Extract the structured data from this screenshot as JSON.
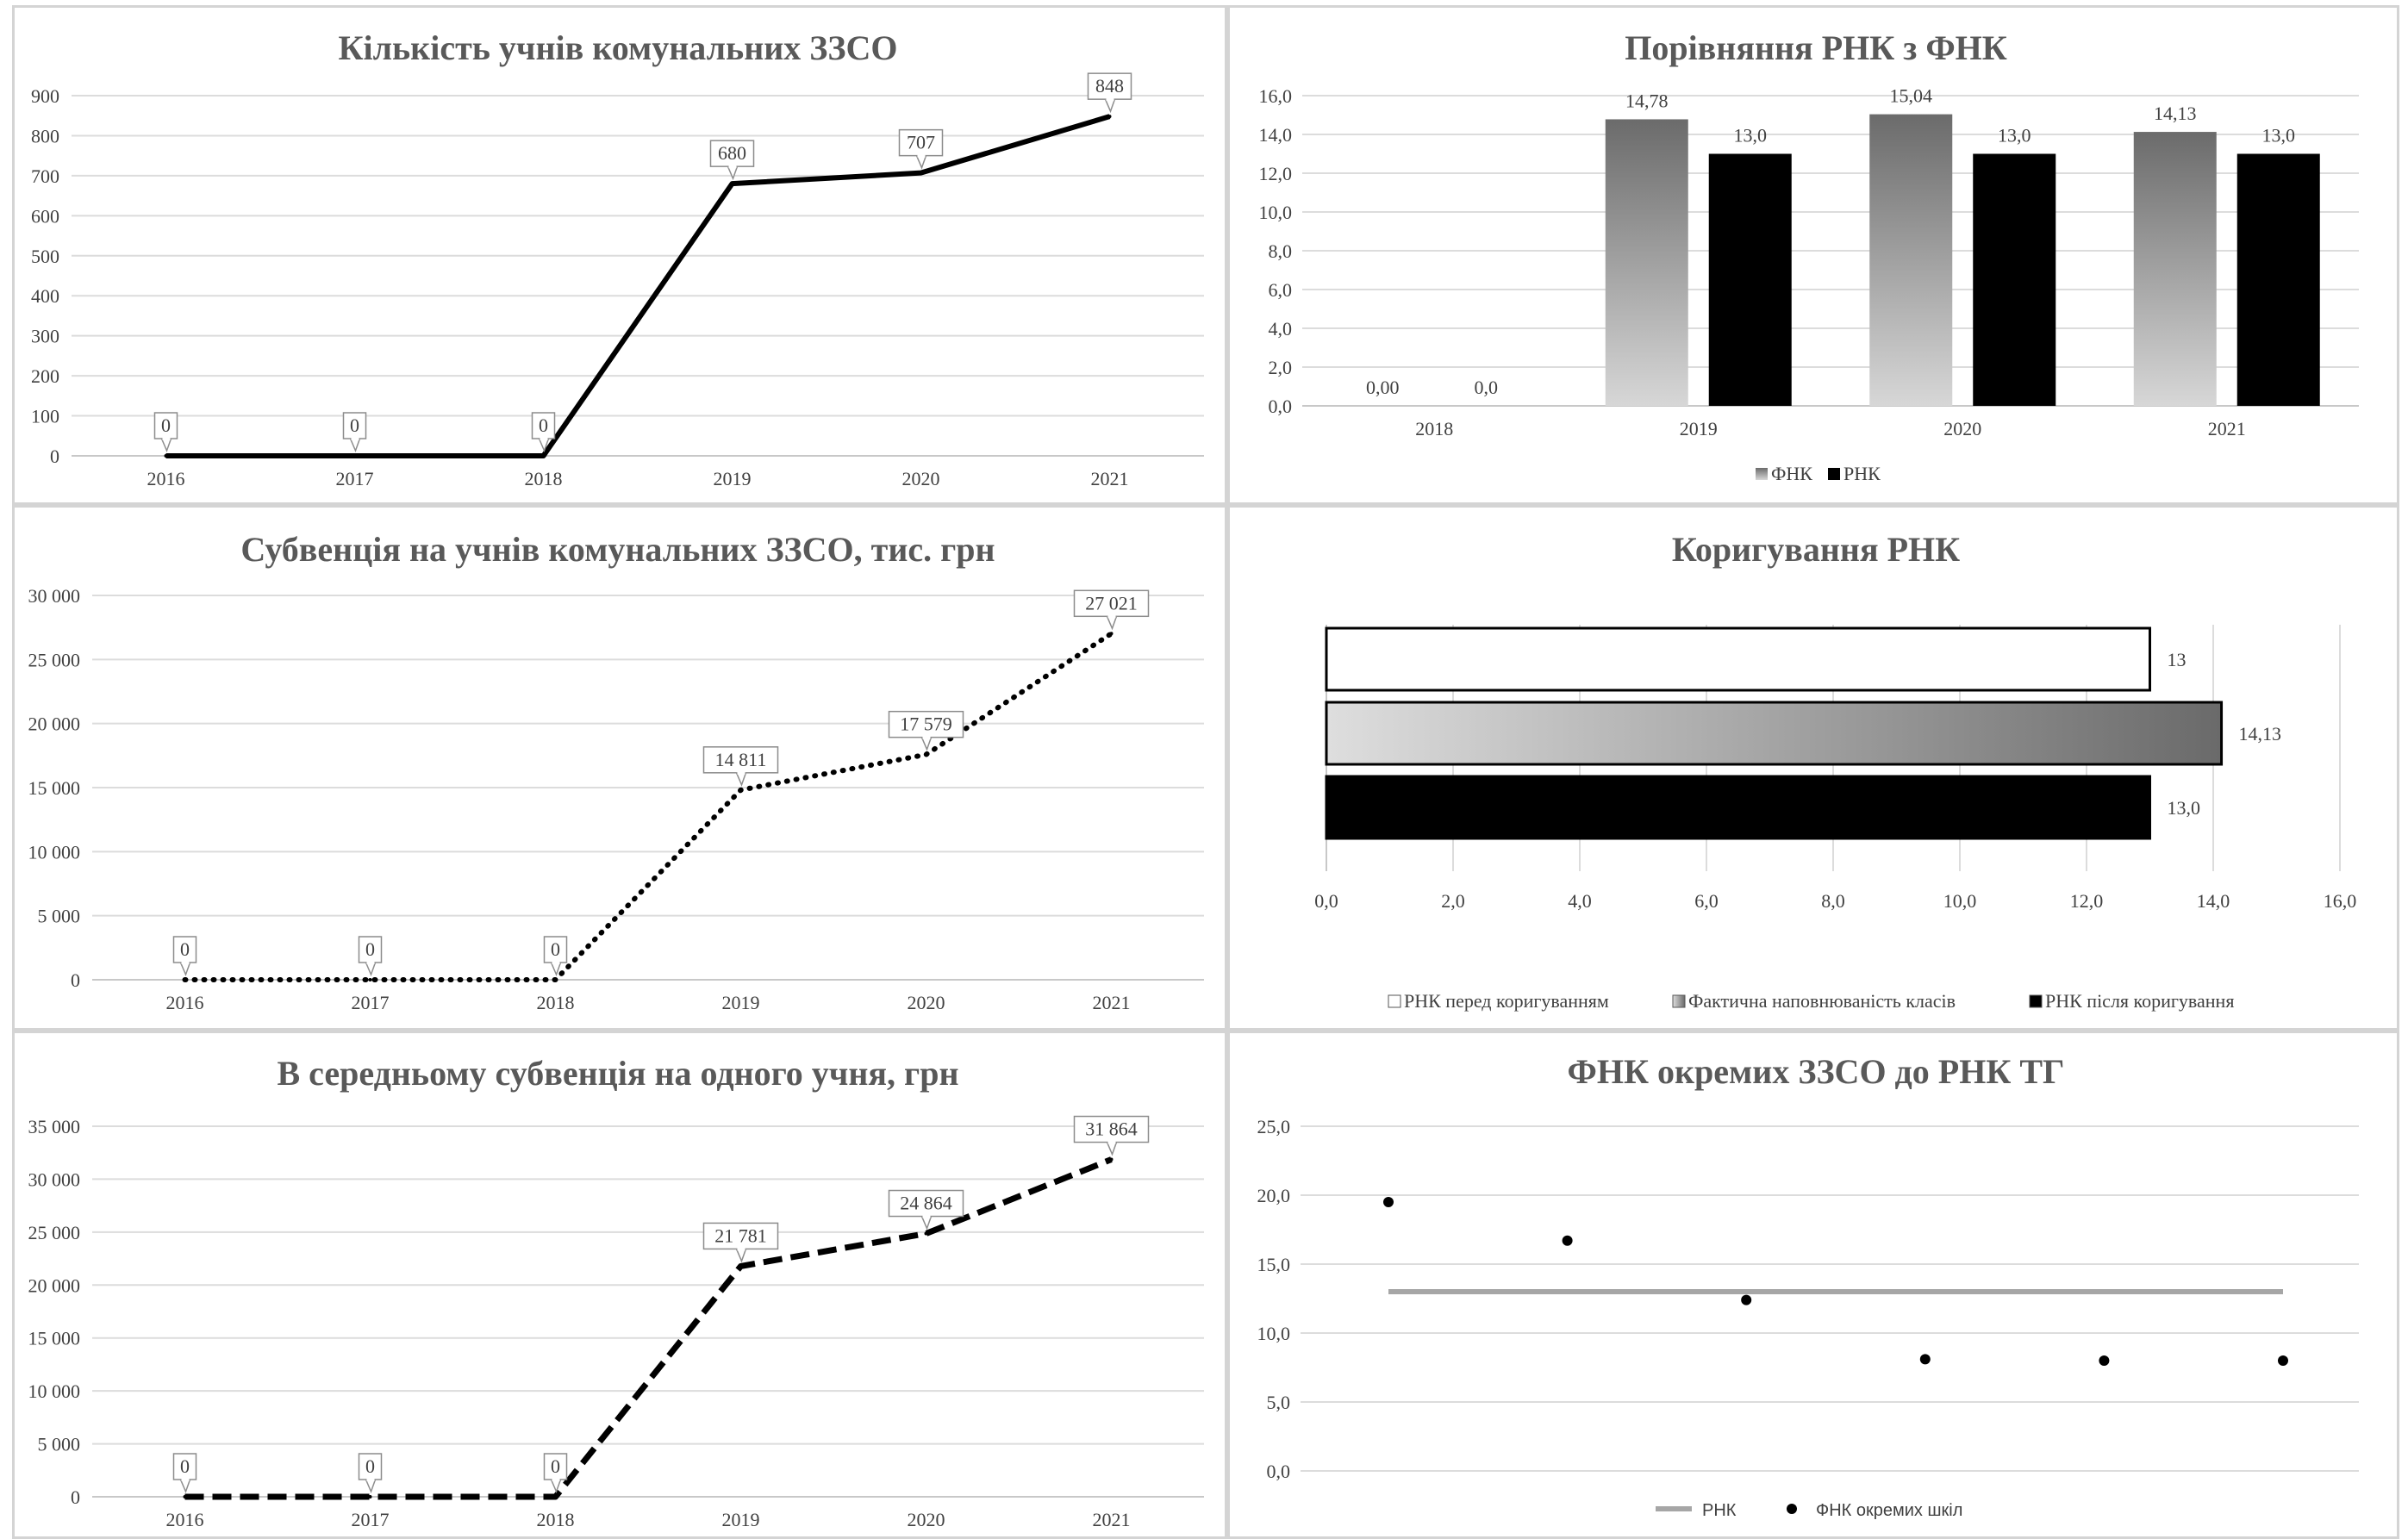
{
  "chart_data": [
    {
      "type": "line",
      "title": "Кількість учнів комунальних ЗЗСО",
      "categories": [
        "2016",
        "2017",
        "2018",
        "2019",
        "2020",
        "2021"
      ],
      "values": [
        0,
        0,
        0,
        680,
        707,
        848
      ],
      "data_labels": [
        "0",
        "0",
        "0",
        "680",
        "707",
        "848"
      ],
      "y_ticks": [
        "0",
        "100",
        "200",
        "300",
        "400",
        "500",
        "600",
        "700",
        "800",
        "900"
      ],
      "ylim": [
        0,
        900
      ],
      "line_style": "solid",
      "grid": true
    },
    {
      "type": "bar",
      "title": "Порівняння РНК з ФНК",
      "categories": [
        "2018",
        "2019",
        "2020",
        "2021"
      ],
      "series": [
        {
          "name": "ФНК",
          "values": [
            0,
            14.78,
            15.04,
            14.13
          ],
          "labels": [
            "0,00",
            "14,78",
            "15,04",
            "14,13"
          ]
        },
        {
          "name": "РНК",
          "values": [
            0,
            13.0,
            13.0,
            13.0
          ],
          "labels": [
            "0,0",
            "13,0",
            "13,0",
            "13,0"
          ]
        }
      ],
      "y_ticks": [
        "0,0",
        "2,0",
        "4,0",
        "6,0",
        "8,0",
        "10,0",
        "12,0",
        "14,0",
        "16,0"
      ],
      "ylim": [
        0,
        16
      ],
      "legend": "bottom",
      "grid": true
    },
    {
      "type": "line",
      "title": "Субвенція на учнів комунальних ЗЗСО, тис. грн",
      "categories": [
        "2016",
        "2017",
        "2018",
        "2019",
        "2020",
        "2021"
      ],
      "values": [
        0,
        0,
        0,
        14811,
        17579,
        27021
      ],
      "data_labels": [
        "0",
        "0",
        "0",
        "14 811",
        "17 579",
        "27 021"
      ],
      "y_ticks": [
        "0",
        "5 000",
        "10 000",
        "15 000",
        "20 000",
        "25 000",
        "30 000"
      ],
      "ylim": [
        0,
        30000
      ],
      "line_style": "dotted",
      "grid": true
    },
    {
      "type": "bar",
      "orientation": "horizontal",
      "title": "Коригування РНК",
      "series": [
        {
          "name": "РНК перед коригуванням",
          "value": 13,
          "label": "13"
        },
        {
          "name": "Фактична наповнюваність класів",
          "value": 14.13,
          "label": "14,13"
        },
        {
          "name": "РНК після коригування",
          "value": 13.0,
          "label": "13,0"
        }
      ],
      "x_ticks": [
        "0,0",
        "2,0",
        "4,0",
        "6,0",
        "8,0",
        "10,0",
        "12,0",
        "14,0",
        "16,0"
      ],
      "xlim": [
        0,
        16
      ],
      "legend": "bottom",
      "grid": true
    },
    {
      "type": "line",
      "title": "В середньому субвенція на одного учня, грн",
      "categories": [
        "2016",
        "2017",
        "2018",
        "2019",
        "2020",
        "2021"
      ],
      "values": [
        0,
        0,
        0,
        21781,
        24864,
        31864
      ],
      "data_labels": [
        "0",
        "0",
        "0",
        "21 781",
        "24 864",
        "31 864"
      ],
      "y_ticks": [
        "0",
        "5 000",
        "10 000",
        "15 000",
        "20 000",
        "25 000",
        "30 000",
        "35 000"
      ],
      "ylim": [
        0,
        35000
      ],
      "line_style": "dashed",
      "grid": true
    },
    {
      "type": "scatter",
      "title": "ФНК окремих ЗЗСО до РНК ТГ",
      "series": [
        {
          "name": "РНК",
          "type": "line",
          "x": [
            1,
            6
          ],
          "y": [
            13,
            13
          ]
        },
        {
          "name": "ФНК окремих шкіл",
          "x": [
            1,
            2,
            3,
            4,
            5,
            6
          ],
          "y": [
            19.5,
            16.7,
            12.4,
            8.1,
            8.0,
            8.0
          ]
        }
      ],
      "xlim": [
        1,
        6
      ],
      "y_ticks": [
        "0,0",
        "5,0",
        "10,0",
        "15,0",
        "20,0",
        "25,0"
      ],
      "ylim": [
        0,
        25
      ],
      "legend": "bottom",
      "grid": true
    }
  ]
}
